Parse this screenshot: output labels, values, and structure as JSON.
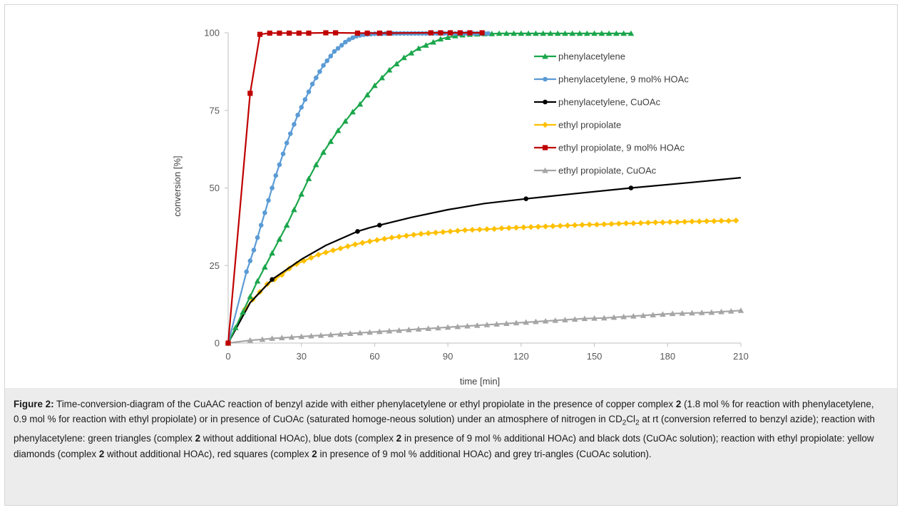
{
  "chart_data": {
    "type": "line",
    "title": "",
    "xlabel": "time [min]",
    "ylabel": "conversion [%]",
    "xlim": [
      0,
      210
    ],
    "ylim": [
      0,
      100
    ],
    "xticks": [
      "0",
      "30",
      "60",
      "90",
      "120",
      "150",
      "180",
      "210"
    ],
    "yticks": [
      "0",
      "25",
      "50",
      "75",
      "100"
    ],
    "grid": false,
    "legend_position": "right",
    "series": [
      {
        "name": "phenylacetylene",
        "color": "#1aa64b",
        "marker": "triangle",
        "x": [
          0,
          3,
          6,
          9,
          12,
          15,
          18,
          21,
          24,
          27,
          30,
          33,
          36,
          39,
          42,
          45,
          48,
          51,
          54,
          57,
          60,
          63,
          66,
          69,
          72,
          75,
          78,
          81,
          84,
          87,
          90,
          93,
          96,
          99,
          102,
          105,
          108,
          111,
          114,
          117,
          120,
          123,
          126,
          129,
          132,
          135,
          138,
          141,
          144,
          147,
          150,
          153,
          156,
          159,
          162,
          165
        ],
        "y": [
          0,
          5,
          10,
          15,
          20,
          24.5,
          29,
          33.5,
          38,
          43,
          48,
          53,
          57.5,
          61.5,
          65,
          68.5,
          71.5,
          74.5,
          77,
          80,
          83,
          85.5,
          88,
          90,
          92,
          93.5,
          95,
          96,
          97,
          98,
          98.5,
          99,
          99.3,
          99.5,
          99.6,
          99.7,
          99.7,
          99.8,
          99.8,
          99.8,
          99.8,
          99.8,
          99.8,
          99.8,
          99.8,
          99.8,
          99.8,
          99.8,
          99.8,
          99.8,
          99.8,
          99.8,
          99.8,
          99.8,
          99.8,
          99.8
        ]
      },
      {
        "name": "phenylacetylene, 9 mol% HOAc",
        "color": "#5b9bd5",
        "marker": "circle",
        "x": [
          0,
          7.5,
          9,
          10.5,
          12,
          13.5,
          15,
          16.5,
          18,
          19.5,
          21,
          22.5,
          24,
          25.5,
          27,
          28.5,
          30,
          31.5,
          33,
          34.5,
          36,
          37.5,
          39,
          40.5,
          42,
          43.5,
          45,
          46.5,
          48,
          49.5,
          51,
          52.5,
          54,
          55.5,
          57,
          58.5,
          60,
          61.5,
          63,
          64.5,
          66,
          67.5,
          69,
          70.5,
          72,
          73.5,
          75,
          76.5,
          78,
          79.5,
          81,
          82.5,
          84,
          85.5,
          87,
          88.5,
          90,
          91.5,
          93,
          94.5,
          96,
          97.5,
          99,
          100.5,
          102,
          103.5,
          105,
          106.5
        ],
        "y": [
          0,
          23,
          26.5,
          30,
          34,
          38,
          42,
          46,
          50,
          54,
          57.5,
          61,
          64.5,
          67.5,
          70.5,
          73.5,
          76,
          78.5,
          81,
          83.5,
          85.5,
          87.5,
          89.5,
          91,
          92.5,
          94,
          95,
          96,
          97,
          97.8,
          98.4,
          98.9,
          99.2,
          99.4,
          99.5,
          99.6,
          99.7,
          99.7,
          99.7,
          99.8,
          99.8,
          99.8,
          99.8,
          99.8,
          99.8,
          99.8,
          99.8,
          99.8,
          99.8,
          99.8,
          99.8,
          99.8,
          99.8,
          99.8,
          99.8,
          99.8,
          99.8,
          99.8,
          99.8,
          99.8,
          99.8,
          99.8,
          99.8,
          99.8,
          99.8,
          99.8,
          99.8,
          99.8
        ]
      },
      {
        "name": "phenylacetylene, CuOAc",
        "color": "#000000",
        "marker": "circle",
        "x": [
          0,
          9,
          18,
          30,
          40,
          53,
          58,
          62,
          75,
          90,
          105,
          122,
          140,
          165,
          190,
          210
        ],
        "y": [
          0,
          13,
          20.5,
          27,
          31.5,
          36,
          37.2,
          38,
          40.5,
          43,
          45,
          46.5,
          48,
          50,
          51.8,
          53.3
        ],
        "marker_x": [
          0,
          18,
          53,
          62,
          122,
          165
        ],
        "marker_y": [
          0,
          20.5,
          36,
          38,
          46.5,
          50
        ]
      },
      {
        "name": "ethyl propiolate",
        "color": "#ffc000",
        "marker": "diamond",
        "x": [
          0,
          7,
          10,
          13,
          16,
          19,
          22,
          25,
          28,
          31,
          34,
          37,
          40,
          43,
          46,
          49,
          52,
          55,
          58,
          61,
          64,
          67,
          70,
          73,
          76,
          79,
          82,
          85,
          88,
          91,
          94,
          97,
          100,
          103,
          106,
          109,
          112,
          115,
          118,
          121,
          124,
          127,
          130,
          133,
          136,
          139,
          142,
          145,
          148,
          151,
          154,
          157,
          160,
          163,
          166,
          169,
          172,
          175,
          178,
          181,
          184,
          187,
          190,
          193,
          196,
          199,
          202,
          205,
          208
        ],
        "y": [
          0,
          11,
          14,
          16.5,
          19,
          20.5,
          22,
          24,
          25.5,
          26.5,
          27.5,
          28.5,
          29.2,
          29.9,
          30.5,
          31.2,
          31.8,
          32.3,
          32.8,
          33.2,
          33.6,
          34,
          34.3,
          34.6,
          34.9,
          35.2,
          35.4,
          35.6,
          35.8,
          36,
          36.2,
          36.4,
          36.5,
          36.6,
          36.7,
          36.8,
          37,
          37.1,
          37.2,
          37.3,
          37.4,
          37.5,
          37.6,
          37.7,
          37.8,
          37.9,
          38,
          38.1,
          38.2,
          38.2,
          38.3,
          38.4,
          38.5,
          38.6,
          38.6,
          38.7,
          38.8,
          38.9,
          38.9,
          39,
          39,
          39.1,
          39.2,
          39.2,
          39.3,
          39.3,
          39.4,
          39.4,
          39.5
        ]
      },
      {
        "name": "ethyl propiolate, 9 mol% HOAc",
        "color": "#c00000",
        "marker": "square",
        "x": [
          0,
          9,
          13,
          17,
          21,
          25,
          29,
          33,
          40,
          44,
          53,
          57,
          62,
          66,
          83,
          87,
          91,
          95,
          99,
          104
        ],
        "y": [
          0,
          80.5,
          99.5,
          99.9,
          99.9,
          99.9,
          99.9,
          99.9,
          100,
          100,
          99.9,
          99.9,
          99.9,
          99.9,
          100,
          100,
          100,
          100,
          100,
          100
        ]
      },
      {
        "name": "ethyl propiolate, CuOAc",
        "color": "#a5a5a5",
        "marker": "triangle",
        "x": [
          0,
          9,
          14,
          18,
          22,
          26,
          30,
          34,
          38,
          42,
          46,
          50,
          54,
          58,
          62,
          66,
          70,
          74,
          78,
          82,
          86,
          90,
          94,
          98,
          102,
          106,
          110,
          114,
          118,
          122,
          126,
          130,
          134,
          138,
          142,
          146,
          150,
          154,
          158,
          162,
          166,
          170,
          174,
          178,
          182,
          186,
          190,
          194,
          198,
          202,
          206,
          210
        ],
        "y": [
          0,
          0.9,
          1.2,
          1.5,
          1.7,
          1.9,
          2.1,
          2.3,
          2.5,
          2.7,
          2.9,
          3.1,
          3.3,
          3.5,
          3.7,
          3.9,
          4.1,
          4.3,
          4.5,
          4.7,
          4.9,
          5.1,
          5.3,
          5.5,
          5.7,
          5.9,
          6.1,
          6.3,
          6.5,
          6.7,
          6.9,
          7.1,
          7.3,
          7.5,
          7.7,
          7.9,
          8,
          8.1,
          8.3,
          8.5,
          8.7,
          8.9,
          9.1,
          9.3,
          9.5,
          9.6,
          9.7,
          9.8,
          9.9,
          10.1,
          10.3,
          10.5
        ]
      }
    ]
  },
  "caption": {
    "label": "Figure 2:",
    "parts": [
      " Time-conversion-diagram of the CuAAC reaction of benzyl azide with either phenylacetylene or ethyl propiolate in the presence of copper complex ",
      {
        "b": "2"
      },
      " (1.8 mol % for reaction with phenylacetylene, 0.9 mol % for reaction with ethyl propiolate) or in presence of CuOAc (saturated homoge-neous solution) under an atmosphere of nitrogen in CD",
      {
        "sub": "2"
      },
      "Cl",
      {
        "sub": "2"
      },
      " at rt (conversion referred to benzyl azide); reaction with phenylacetylene: green triangles (complex ",
      {
        "b": "2"
      },
      " without additional HOAc), blue dots (complex ",
      {
        "b": "2"
      },
      " in presence of 9 mol % additional HOAc) and black dots (CuOAc solution); reaction with ethyl propiolate: yellow diamonds (complex ",
      {
        "b": "2"
      },
      " without additional HOAc), red squares (complex ",
      {
        "b": "2"
      },
      " in presence of 9 mol % additional HOAc) and grey tri-angles (CuOAc solution)."
    ]
  }
}
